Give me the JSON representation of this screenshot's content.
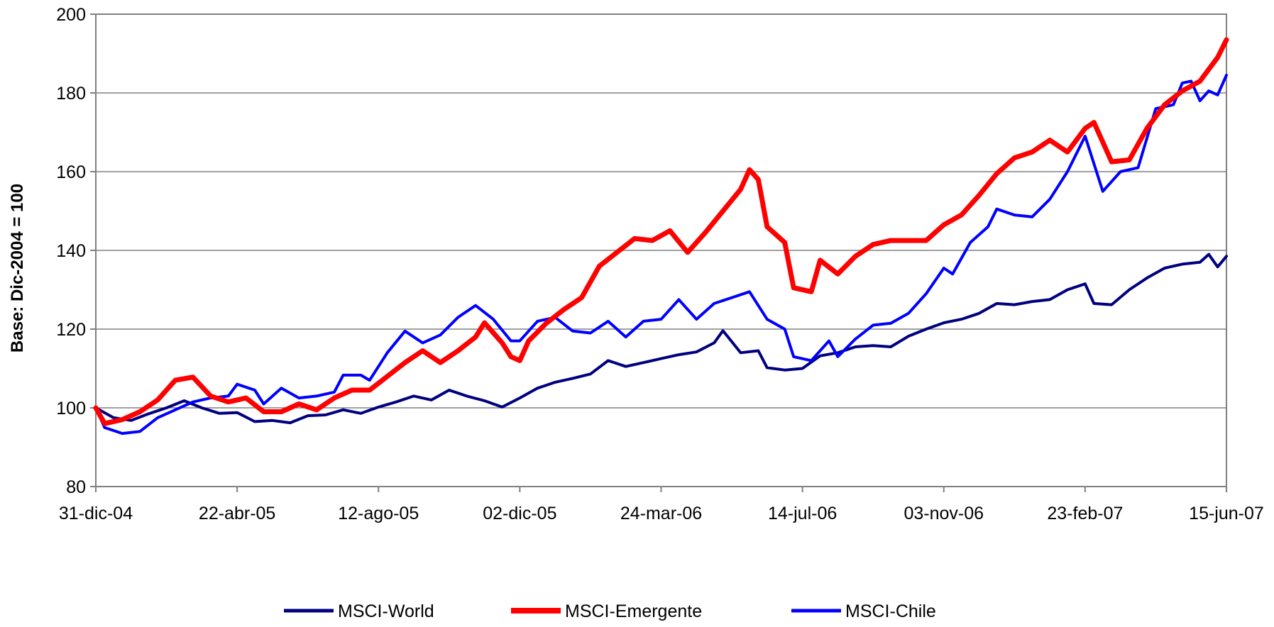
{
  "chart_data": {
    "type": "line",
    "title": "",
    "xlabel": "",
    "ylabel": "Base: Dic-2004 = 100",
    "ylim": [
      80,
      200
    ],
    "yticks": [
      "80",
      "100",
      "120",
      "140",
      "160",
      "180",
      "200"
    ],
    "xlim": [
      "2004-12-31",
      "2007-06-15"
    ],
    "xticks": [
      {
        "label": "31-dic-04",
        "date": "2004-12-31"
      },
      {
        "label": "22-abr-05",
        "date": "2005-04-22"
      },
      {
        "label": "12-ago-05",
        "date": "2005-08-12"
      },
      {
        "label": "02-dic-05",
        "date": "2005-12-02"
      },
      {
        "label": "24-mar-06",
        "date": "2006-03-24"
      },
      {
        "label": "14-jul-06",
        "date": "2006-07-14"
      },
      {
        "label": "03-nov-06",
        "date": "2006-11-03"
      },
      {
        "label": "23-feb-07",
        "date": "2007-02-23"
      },
      {
        "label": "15-jun-07",
        "date": "2007-06-15"
      }
    ],
    "grid": "horizontal",
    "legend_position": "bottom",
    "series": [
      {
        "name": "MSCI-World",
        "color": "#000080",
        "points": [
          [
            "2004-12-31",
            100
          ],
          [
            "2005-01-14",
            97.5
          ],
          [
            "2005-01-28",
            96.8
          ],
          [
            "2005-02-11",
            98.5
          ],
          [
            "2005-02-25",
            100
          ],
          [
            "2005-03-11",
            101.8
          ],
          [
            "2005-03-25",
            100
          ],
          [
            "2005-04-08",
            98.6
          ],
          [
            "2005-04-22",
            98.8
          ],
          [
            "2005-05-06",
            96.5
          ],
          [
            "2005-05-20",
            96.8
          ],
          [
            "2005-06-03",
            96.2
          ],
          [
            "2005-06-17",
            98
          ],
          [
            "2005-07-01",
            98.2
          ],
          [
            "2005-07-15",
            99.5
          ],
          [
            "2005-07-29",
            98.6
          ],
          [
            "2005-08-12",
            100.2
          ],
          [
            "2005-08-26",
            101.5
          ],
          [
            "2005-09-09",
            103
          ],
          [
            "2005-09-23",
            102
          ],
          [
            "2005-10-07",
            104.5
          ],
          [
            "2005-10-21",
            103
          ],
          [
            "2005-11-04",
            101.8
          ],
          [
            "2005-11-18",
            100.2
          ],
          [
            "2005-12-02",
            102.5
          ],
          [
            "2005-12-16",
            105
          ],
          [
            "2005-12-30",
            106.5
          ],
          [
            "2006-01-13",
            107.5
          ],
          [
            "2006-01-27",
            108.6
          ],
          [
            "2006-02-10",
            112
          ],
          [
            "2006-02-24",
            110.5
          ],
          [
            "2006-03-10",
            111.5
          ],
          [
            "2006-03-24",
            112.5
          ],
          [
            "2006-04-07",
            113.5
          ],
          [
            "2006-04-21",
            114.2
          ],
          [
            "2006-05-05",
            116.5
          ],
          [
            "2006-05-12",
            119.6
          ],
          [
            "2006-05-26",
            114
          ],
          [
            "2006-06-09",
            114.5
          ],
          [
            "2006-06-16",
            110.2
          ],
          [
            "2006-06-30",
            109.6
          ],
          [
            "2006-07-14",
            110
          ],
          [
            "2006-07-28",
            113.2
          ],
          [
            "2006-08-11",
            114
          ],
          [
            "2006-08-25",
            115.5
          ],
          [
            "2006-09-08",
            115.8
          ],
          [
            "2006-09-22",
            115.5
          ],
          [
            "2006-10-06",
            118.2
          ],
          [
            "2006-10-20",
            120
          ],
          [
            "2006-11-03",
            121.6
          ],
          [
            "2006-11-17",
            122.5
          ],
          [
            "2006-12-01",
            124
          ],
          [
            "2006-12-15",
            126.5
          ],
          [
            "2006-12-29",
            126.2
          ],
          [
            "2007-01-12",
            127
          ],
          [
            "2007-01-26",
            127.5
          ],
          [
            "2007-02-09",
            130
          ],
          [
            "2007-02-23",
            131.5
          ],
          [
            "2007-03-02",
            126.5
          ],
          [
            "2007-03-16",
            126.2
          ],
          [
            "2007-03-30",
            130
          ],
          [
            "2007-04-13",
            133
          ],
          [
            "2007-04-27",
            135.5
          ],
          [
            "2007-05-11",
            136.5
          ],
          [
            "2007-05-25",
            137
          ],
          [
            "2007-06-01",
            139
          ],
          [
            "2007-06-08",
            135.8
          ],
          [
            "2007-06-15",
            138.5
          ]
        ]
      },
      {
        "name": "MSCI-Emergente",
        "color": "#ff0000",
        "points": [
          [
            "2004-12-31",
            100
          ],
          [
            "2005-01-07",
            96
          ],
          [
            "2005-01-21",
            97
          ],
          [
            "2005-02-04",
            99
          ],
          [
            "2005-02-18",
            102
          ],
          [
            "2005-03-04",
            107
          ],
          [
            "2005-03-18",
            107.8
          ],
          [
            "2005-04-01",
            103
          ],
          [
            "2005-04-15",
            101.5
          ],
          [
            "2005-04-29",
            102.5
          ],
          [
            "2005-05-13",
            99
          ],
          [
            "2005-05-27",
            99
          ],
          [
            "2005-06-10",
            101
          ],
          [
            "2005-06-24",
            99.5
          ],
          [
            "2005-07-08",
            102.5
          ],
          [
            "2005-07-22",
            104.5
          ],
          [
            "2005-08-05",
            104.5
          ],
          [
            "2005-08-19",
            108
          ],
          [
            "2005-09-02",
            111.5
          ],
          [
            "2005-09-16",
            114.5
          ],
          [
            "2005-09-30",
            111.5
          ],
          [
            "2005-10-14",
            114.5
          ],
          [
            "2005-10-28",
            118
          ],
          [
            "2005-11-04",
            121.6
          ],
          [
            "2005-11-18",
            116.5
          ],
          [
            "2005-11-25",
            113
          ],
          [
            "2005-12-02",
            112
          ],
          [
            "2005-12-09",
            117
          ],
          [
            "2005-12-23",
            121.5
          ],
          [
            "2006-01-06",
            125
          ],
          [
            "2006-01-20",
            128
          ],
          [
            "2006-02-03",
            136
          ],
          [
            "2006-02-17",
            139.5
          ],
          [
            "2006-03-03",
            143
          ],
          [
            "2006-03-17",
            142.5
          ],
          [
            "2006-03-31",
            145
          ],
          [
            "2006-04-14",
            139.5
          ],
          [
            "2006-04-28",
            144.5
          ],
          [
            "2006-05-12",
            150
          ],
          [
            "2006-05-26",
            155.5
          ],
          [
            "2006-06-02",
            160.5
          ],
          [
            "2006-06-09",
            158
          ],
          [
            "2006-06-16",
            146
          ],
          [
            "2006-06-30",
            142
          ],
          [
            "2006-07-07",
            130.5
          ],
          [
            "2006-07-21",
            129.5
          ],
          [
            "2006-07-28",
            137.5
          ],
          [
            "2006-08-11",
            134
          ],
          [
            "2006-08-25",
            138.5
          ],
          [
            "2006-09-08",
            141.5
          ],
          [
            "2006-09-22",
            142.5
          ],
          [
            "2006-10-06",
            142.5
          ],
          [
            "2006-10-20",
            142.5
          ],
          [
            "2006-11-03",
            146.5
          ],
          [
            "2006-11-17",
            149
          ],
          [
            "2006-12-01",
            154
          ],
          [
            "2006-12-15",
            159.5
          ],
          [
            "2006-12-29",
            163.5
          ],
          [
            "2007-01-12",
            165
          ],
          [
            "2007-01-26",
            168
          ],
          [
            "2007-02-09",
            165
          ],
          [
            "2007-02-23",
            171
          ],
          [
            "2007-03-02",
            172.5
          ],
          [
            "2007-03-16",
            162.5
          ],
          [
            "2007-03-30",
            163
          ],
          [
            "2007-04-13",
            171
          ],
          [
            "2007-04-27",
            177
          ],
          [
            "2007-05-11",
            180.5
          ],
          [
            "2007-05-25",
            183
          ],
          [
            "2007-06-01",
            186
          ],
          [
            "2007-06-08",
            189
          ],
          [
            "2007-06-15",
            193.5
          ]
        ]
      },
      {
        "name": "MSCI-Chile",
        "color": "#0000ff",
        "points": [
          [
            "2004-12-31",
            100
          ],
          [
            "2005-01-07",
            95
          ],
          [
            "2005-01-21",
            93.5
          ],
          [
            "2005-02-04",
            94
          ],
          [
            "2005-02-18",
            97.5
          ],
          [
            "2005-03-04",
            99.5
          ],
          [
            "2005-03-18",
            101.5
          ],
          [
            "2005-04-01",
            102.5
          ],
          [
            "2005-04-15",
            103
          ],
          [
            "2005-04-22",
            106
          ],
          [
            "2005-05-06",
            104.5
          ],
          [
            "2005-05-13",
            101
          ],
          [
            "2005-05-27",
            105
          ],
          [
            "2005-06-10",
            102.5
          ],
          [
            "2005-06-24",
            103
          ],
          [
            "2005-07-08",
            104
          ],
          [
            "2005-07-15",
            108.3
          ],
          [
            "2005-07-29",
            108.3
          ],
          [
            "2005-08-05",
            107
          ],
          [
            "2005-08-19",
            114
          ],
          [
            "2005-09-02",
            119.5
          ],
          [
            "2005-09-16",
            116.5
          ],
          [
            "2005-09-30",
            118.5
          ],
          [
            "2005-10-14",
            123
          ],
          [
            "2005-10-28",
            126
          ],
          [
            "2005-11-11",
            122.5
          ],
          [
            "2005-11-25",
            117
          ],
          [
            "2005-12-02",
            117
          ],
          [
            "2005-12-16",
            122
          ],
          [
            "2005-12-30",
            123
          ],
          [
            "2006-01-13",
            119.5
          ],
          [
            "2006-01-27",
            119
          ],
          [
            "2006-02-10",
            122
          ],
          [
            "2006-02-24",
            118
          ],
          [
            "2006-03-10",
            122
          ],
          [
            "2006-03-24",
            122.5
          ],
          [
            "2006-04-07",
            127.5
          ],
          [
            "2006-04-21",
            122.5
          ],
          [
            "2006-05-05",
            126.5
          ],
          [
            "2006-05-19",
            128
          ],
          [
            "2006-06-02",
            129.5
          ],
          [
            "2006-06-16",
            122.5
          ],
          [
            "2006-06-30",
            120
          ],
          [
            "2006-07-07",
            113
          ],
          [
            "2006-07-21",
            112
          ],
          [
            "2006-08-04",
            117
          ],
          [
            "2006-08-11",
            113
          ],
          [
            "2006-08-25",
            117.5
          ],
          [
            "2006-09-08",
            121
          ],
          [
            "2006-09-22",
            121.5
          ],
          [
            "2006-10-06",
            124
          ],
          [
            "2006-10-20",
            129
          ],
          [
            "2006-11-03",
            135.5
          ],
          [
            "2006-11-10",
            134
          ],
          [
            "2006-11-24",
            142
          ],
          [
            "2006-12-08",
            146
          ],
          [
            "2006-12-15",
            150.5
          ],
          [
            "2006-12-29",
            149
          ],
          [
            "2007-01-12",
            148.5
          ],
          [
            "2007-01-26",
            153
          ],
          [
            "2007-02-09",
            160
          ],
          [
            "2007-02-23",
            169
          ],
          [
            "2007-03-09",
            155
          ],
          [
            "2007-03-23",
            160
          ],
          [
            "2007-04-06",
            161
          ],
          [
            "2007-04-20",
            176
          ],
          [
            "2007-05-04",
            177
          ],
          [
            "2007-05-11",
            182.5
          ],
          [
            "2007-05-18",
            183
          ],
          [
            "2007-05-25",
            178
          ],
          [
            "2007-06-01",
            180.5
          ],
          [
            "2007-06-08",
            179.5
          ],
          [
            "2007-06-15",
            184.5
          ]
        ]
      }
    ]
  }
}
